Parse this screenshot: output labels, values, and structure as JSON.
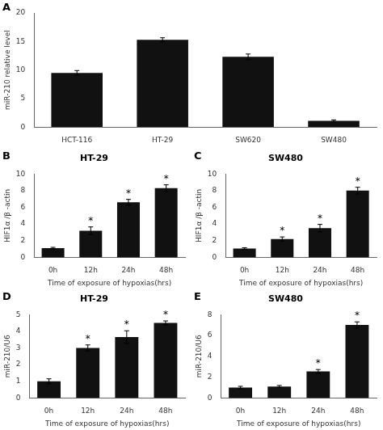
{
  "chart_data": [
    {
      "type": "bar",
      "categories": [
        "HCT-116",
        "HT-29",
        "SW620",
        "SW480"
      ],
      "values": [
        9.5,
        15.3,
        12.3,
        1.1
      ],
      "errors": [
        0.4,
        0.35,
        0.5,
        0.15
      ],
      "ylabel": "miR-210 relative level",
      "ylim": [
        0,
        20
      ],
      "yticks": [
        0,
        5,
        10,
        15,
        20
      ],
      "color": "#111111",
      "grid": false,
      "annotations": [
        {
          "text": "A"
        }
      ]
    },
    {
      "type": "bar",
      "title": "HT-29",
      "categories": [
        "0h",
        "12h",
        "24h",
        "48h"
      ],
      "values": [
        1.1,
        3.2,
        6.6,
        8.3
      ],
      "errors": [
        0.1,
        0.45,
        0.35,
        0.4
      ],
      "ylabel": "HIF1α /β -actin",
      "xlabel": "Time of exposure of hypoxias(hrs)",
      "ylim": [
        0,
        10
      ],
      "yticks": [
        0,
        2,
        4,
        6,
        8,
        10
      ],
      "color": "#111111",
      "grid": false,
      "annotations": [
        {
          "text": "B"
        },
        {
          "x": "12h",
          "text": "*"
        },
        {
          "x": "24h",
          "text": "*"
        },
        {
          "x": "48h",
          "text": "*"
        }
      ]
    },
    {
      "type": "bar",
      "title": "SW480",
      "categories": [
        "0h",
        "12h",
        "24h",
        "48h"
      ],
      "values": [
        1.05,
        2.2,
        3.5,
        8.0
      ],
      "errors": [
        0.1,
        0.25,
        0.45,
        0.4
      ],
      "ylabel": "HIF1α /β -actin",
      "xlabel": "Time of exposure of hypoxias(hrs)",
      "ylim": [
        0,
        10
      ],
      "yticks": [
        0,
        2,
        4,
        6,
        8,
        10
      ],
      "color": "#111111",
      "grid": false,
      "annotations": [
        {
          "text": "C"
        },
        {
          "x": "12h",
          "text": "*"
        },
        {
          "x": "24h",
          "text": "*"
        },
        {
          "x": "48h",
          "text": "*"
        }
      ]
    },
    {
      "type": "bar",
      "title": "HT-29",
      "categories": [
        "0h",
        "12h",
        "24h",
        "48h"
      ],
      "values": [
        1.0,
        3.0,
        3.65,
        4.5
      ],
      "errors": [
        0.15,
        0.18,
        0.38,
        0.12
      ],
      "ylabel": "miR-210/U6",
      "xlabel": "Time of exposure of hypoxias(hrs)",
      "ylim": [
        0,
        5
      ],
      "yticks": [
        0,
        1,
        2,
        3,
        4,
        5
      ],
      "color": "#111111",
      "grid": false,
      "annotations": [
        {
          "text": "D"
        },
        {
          "x": "12h",
          "text": "*"
        },
        {
          "x": "24h",
          "text": "*"
        },
        {
          "x": "48h",
          "text": "*"
        }
      ]
    },
    {
      "type": "bar",
      "title": "SW480",
      "categories": [
        "0h",
        "12h",
        "24h",
        "48h"
      ],
      "values": [
        1.0,
        1.1,
        2.55,
        7.0
      ],
      "errors": [
        0.12,
        0.1,
        0.18,
        0.3
      ],
      "ylabel": "miR-210/U6",
      "xlabel": "Time of exposure of hypoxias(hrs)",
      "ylim": [
        0,
        8
      ],
      "yticks": [
        0,
        2,
        4,
        6,
        8
      ],
      "color": "#111111",
      "grid": false,
      "annotations": [
        {
          "text": "E"
        },
        {
          "x": "24h",
          "text": "*"
        },
        {
          "x": "48h",
          "text": "*"
        }
      ]
    }
  ]
}
